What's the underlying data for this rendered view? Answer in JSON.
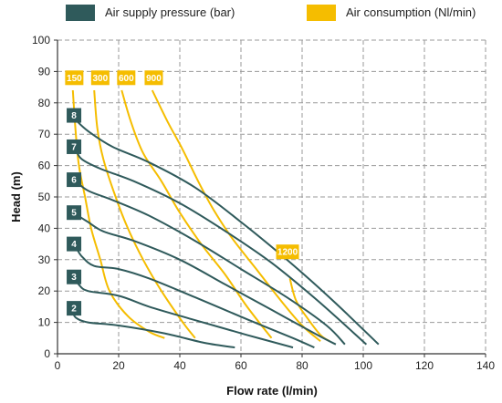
{
  "colors": {
    "pressure": "#2f5a5b",
    "air": "#f5bd00",
    "grid": "#9a9a9a",
    "axis": "#333333"
  },
  "legend": [
    {
      "key": "pressure",
      "label": "Air supply pressure (bar)"
    },
    {
      "key": "air",
      "label": "Air consumption (Nl/min)"
    }
  ],
  "chart_data": {
    "type": "line",
    "xlabel": "Flow rate (l/min)",
    "ylabel": "Head (m)",
    "xlim": [
      0,
      140
    ],
    "ylim": [
      0,
      100
    ],
    "xticks": [
      0,
      20,
      40,
      60,
      80,
      100,
      120,
      140
    ],
    "yticks": [
      0,
      10,
      20,
      30,
      40,
      50,
      60,
      70,
      80,
      90,
      100
    ],
    "grid": true,
    "legend_position": "top",
    "pressure_series": [
      {
        "label": "2",
        "tag_at": [
          3,
          14.5
        ],
        "points": [
          [
            5,
            13.5
          ],
          [
            6,
            11.5
          ],
          [
            10,
            10
          ],
          [
            20,
            9
          ],
          [
            35,
            6.5
          ],
          [
            48,
            3.5
          ],
          [
            58,
            2
          ]
        ]
      },
      {
        "label": "3",
        "tag_at": [
          3,
          24.5
        ],
        "points": [
          [
            6,
            24
          ],
          [
            7,
            22
          ],
          [
            10,
            20
          ],
          [
            20,
            18.5
          ],
          [
            30,
            15
          ],
          [
            44,
            11
          ],
          [
            62,
            6
          ],
          [
            77,
            2
          ]
        ]
      },
      {
        "label": "4",
        "tag_at": [
          3,
          35
        ],
        "points": [
          [
            6,
            34
          ],
          [
            8,
            31
          ],
          [
            12,
            28
          ],
          [
            20,
            27
          ],
          [
            30,
            24
          ],
          [
            45,
            18
          ],
          [
            62,
            11
          ],
          [
            77,
            5
          ],
          [
            84,
            2
          ]
        ]
      },
      {
        "label": "5",
        "tag_at": [
          3,
          45
        ],
        "points": [
          [
            6,
            44.5
          ],
          [
            10,
            42
          ],
          [
            15,
            39
          ],
          [
            25,
            36
          ],
          [
            40,
            30
          ],
          [
            55,
            22
          ],
          [
            70,
            14
          ],
          [
            85,
            6
          ],
          [
            91,
            3
          ]
        ]
      },
      {
        "label": "6",
        "tag_at": [
          3,
          55.5
        ],
        "points": [
          [
            6,
            55
          ],
          [
            10,
            52
          ],
          [
            18,
            49
          ],
          [
            30,
            44
          ],
          [
            45,
            36
          ],
          [
            60,
            27
          ],
          [
            75,
            18
          ],
          [
            88,
            9
          ],
          [
            94,
            3
          ]
        ]
      },
      {
        "label": "7",
        "tag_at": [
          3,
          66
        ],
        "points": [
          [
            6,
            65
          ],
          [
            8,
            62
          ],
          [
            14,
            59
          ],
          [
            25,
            55
          ],
          [
            40,
            48
          ],
          [
            55,
            39
          ],
          [
            70,
            29
          ],
          [
            85,
            17
          ],
          [
            101,
            3
          ]
        ]
      },
      {
        "label": "8",
        "tag_at": [
          3,
          76
        ],
        "points": [
          [
            6,
            74.5
          ],
          [
            10,
            71
          ],
          [
            18,
            66
          ],
          [
            30,
            61
          ],
          [
            45,
            53
          ],
          [
            60,
            42
          ],
          [
            75,
            30
          ],
          [
            90,
            17
          ],
          [
            105,
            3
          ]
        ]
      }
    ],
    "air_series": [
      {
        "label": "150",
        "tag_at": [
          2.5,
          88
        ],
        "points": [
          [
            5,
            84
          ],
          [
            6,
            70
          ],
          [
            7,
            60
          ],
          [
            9,
            50
          ],
          [
            11,
            40
          ],
          [
            14,
            30
          ],
          [
            17,
            20
          ],
          [
            23,
            12
          ],
          [
            30,
            7
          ],
          [
            35,
            5
          ]
        ]
      },
      {
        "label": "300",
        "tag_at": [
          11,
          88
        ],
        "points": [
          [
            12,
            84
          ],
          [
            13,
            72
          ],
          [
            15,
            62
          ],
          [
            19,
            50
          ],
          [
            23,
            40
          ],
          [
            28,
            30
          ],
          [
            34,
            20
          ],
          [
            41,
            10
          ],
          [
            45,
            5
          ]
        ]
      },
      {
        "label": "600",
        "tag_at": [
          19.5,
          88
        ],
        "points": [
          [
            21,
            84
          ],
          [
            24,
            74
          ],
          [
            28,
            64
          ],
          [
            34,
            55
          ],
          [
            40,
            45
          ],
          [
            47,
            35
          ],
          [
            55,
            25
          ],
          [
            62,
            15
          ],
          [
            70,
            5
          ]
        ]
      },
      {
        "label": "900",
        "tag_at": [
          28.5,
          88
        ],
        "points": [
          [
            31,
            84
          ],
          [
            36,
            74
          ],
          [
            41,
            65
          ],
          [
            46,
            55
          ],
          [
            51,
            46
          ],
          [
            57,
            37
          ],
          [
            65,
            27
          ],
          [
            73,
            17
          ],
          [
            80,
            9
          ],
          [
            86,
            4
          ]
        ]
      },
      {
        "label": "1200",
        "tag_at": [
          71.5,
          32.5
        ],
        "points": [
          [
            76,
            24
          ],
          [
            78,
            17
          ],
          [
            82,
            11
          ],
          [
            86,
            6
          ],
          [
            89,
            4
          ]
        ]
      }
    ]
  }
}
